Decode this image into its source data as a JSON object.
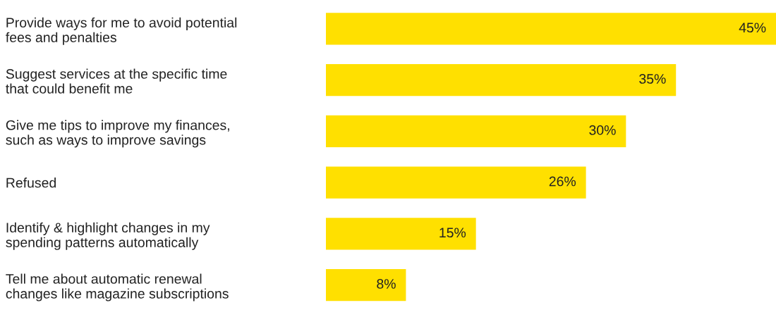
{
  "chart_data": {
    "type": "bar",
    "orientation": "horizontal",
    "categories": [
      "Provide ways for me to avoid potential\nfees and penalties",
      "Suggest services at the specific time\nthat could benefit me",
      "Give me tips to improve my finances,\nsuch as ways to improve savings",
      "Refused",
      "Identify & highlight changes in my\nspending patterns automatically",
      "Tell me about automatic renewal\nchanges like magazine subscriptions"
    ],
    "values": [
      45,
      35,
      30,
      26,
      15,
      8
    ],
    "value_labels": [
      "45%",
      "35%",
      "30%",
      "26%",
      "15%",
      "8%"
    ],
    "color": "#ffe000",
    "grid": false,
    "legend": false,
    "tick_labels": "y"
  }
}
